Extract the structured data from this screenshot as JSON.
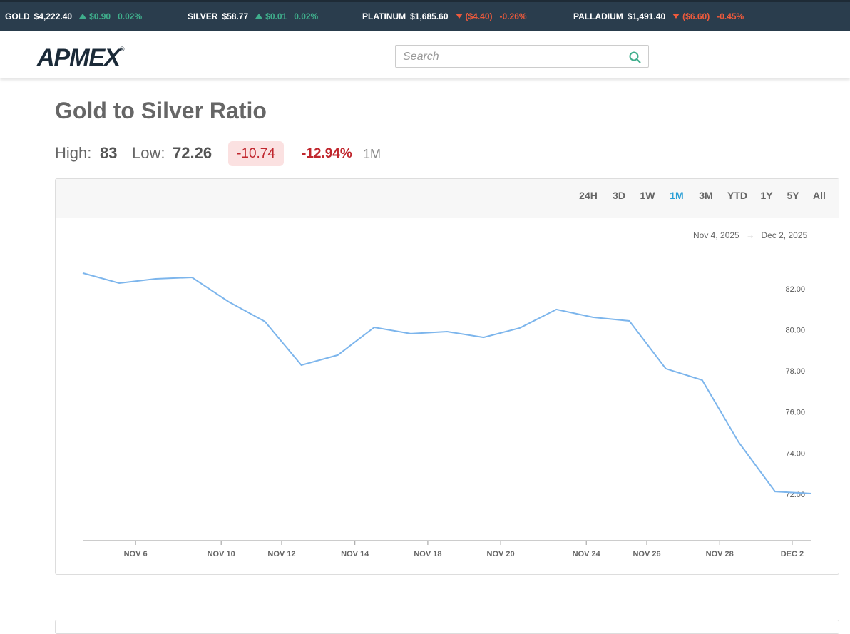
{
  "ticker": [
    {
      "name": "GOLD",
      "price": "$4,222.40",
      "change": "$0.90",
      "percent": "0.02%",
      "direction": "up"
    },
    {
      "name": "SILVER",
      "price": "$58.77",
      "change": "$0.01",
      "percent": "0.02%",
      "direction": "up"
    },
    {
      "name": "PLATINUM",
      "price": "$1,685.60",
      "change": "($4.40)",
      "percent": "-0.26%",
      "direction": "down"
    },
    {
      "name": "PALLADIUM",
      "price": "$1,491.40",
      "change": "($6.60)",
      "percent": "-0.45%",
      "direction": "down"
    }
  ],
  "header": {
    "logo": "APMEX",
    "logo_mark": "®",
    "search_placeholder": "Search"
  },
  "title": "Gold to Silver Ratio",
  "stats": {
    "high_label": "High:",
    "high": "83",
    "low_label": "Low:",
    "low": "72.26",
    "change": "-10.74",
    "percent": "-12.94%",
    "period": "1M"
  },
  "ranges": {
    "options": [
      "24H",
      "3D",
      "1W",
      "1M",
      "3M",
      "YTD",
      "1Y",
      "5Y",
      "All"
    ],
    "active": 3
  },
  "date_range": {
    "from": "Nov 4, 2025",
    "arrow": "→",
    "to": "Dec 2, 2025"
  },
  "chart_data": {
    "type": "line",
    "color": "#7cb5ec",
    "values": [
      82.8,
      82.31,
      82.52,
      82.59,
      81.41,
      80.44,
      78.32,
      78.81,
      80.16,
      79.85,
      79.95,
      79.67,
      80.13,
      81.03,
      80.65,
      80.47,
      78.15,
      77.59,
      74.57,
      72.17,
      72.07
    ],
    "xlim": [
      0,
      20
    ],
    "xticks": [
      {
        "value": 1.45,
        "label": "NOV 6"
      },
      {
        "value": 3.8,
        "label": "NOV 10"
      },
      {
        "value": 5.46,
        "label": "NOV 12"
      },
      {
        "value": 7.47,
        "label": "NOV 14"
      },
      {
        "value": 9.47,
        "label": "NOV 18"
      },
      {
        "value": 11.47,
        "label": "NOV 20"
      },
      {
        "value": 13.82,
        "label": "NOV 24"
      },
      {
        "value": 15.48,
        "label": "NOV 26"
      },
      {
        "value": 17.48,
        "label": "NOV 28"
      },
      {
        "value": 19.47,
        "label": "DEC 2"
      }
    ],
    "ylim": [
      69.78,
      84.29
    ],
    "yticks": [
      {
        "value": 72,
        "label": "72.00"
      },
      {
        "value": 74,
        "label": "74.00"
      },
      {
        "value": 76,
        "label": "76.00"
      },
      {
        "value": 78,
        "label": "78.00"
      },
      {
        "value": 80,
        "label": "80.00"
      },
      {
        "value": 82,
        "label": "82.00"
      }
    ],
    "grid": false
  }
}
